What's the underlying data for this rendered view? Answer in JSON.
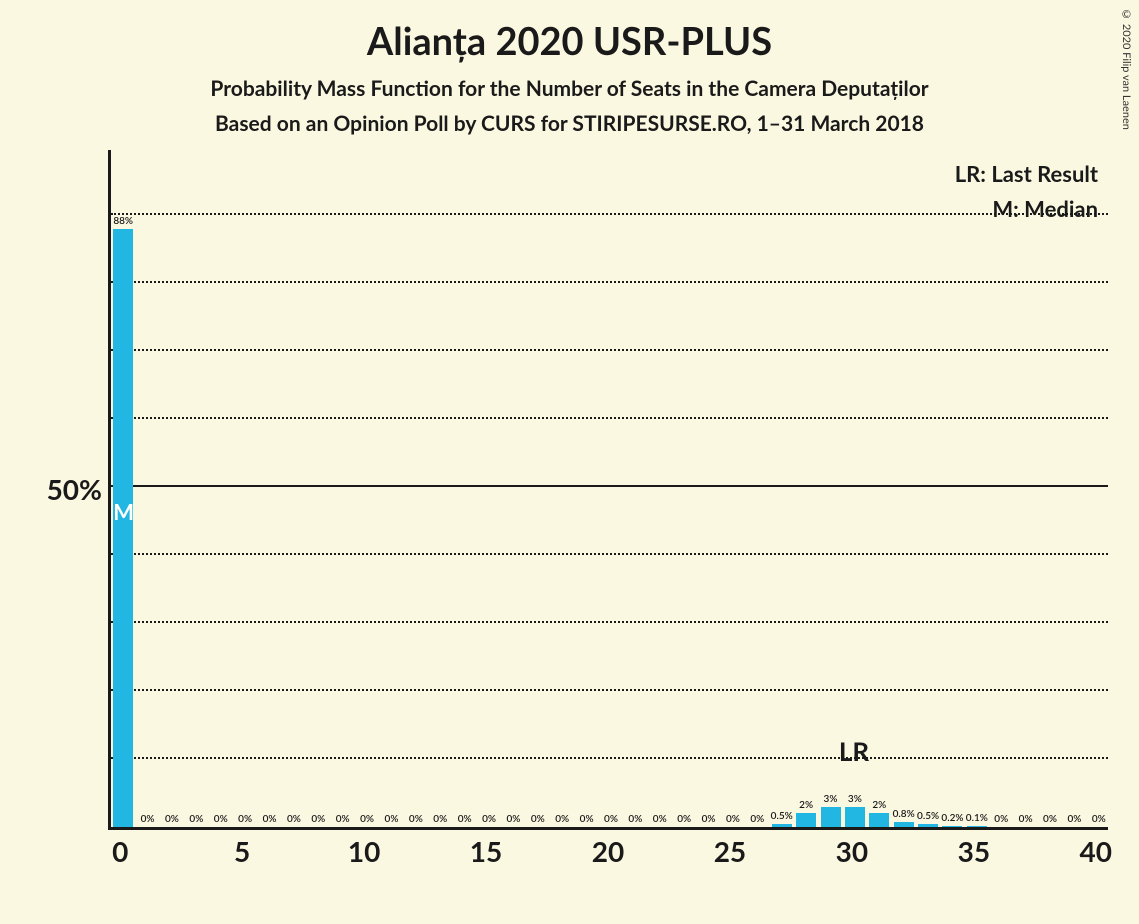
{
  "copyright": "© 2020 Filip van Laenen",
  "title": "Alianța 2020 USR-PLUS",
  "subtitle1": "Probability Mass Function for the Number of Seats in the Camera Deputaților",
  "subtitle2": "Based on an Opinion Poll by CURS for STIRIPESURSE.RO, 1–31 March 2018",
  "legend_lr": "LR: Last Result",
  "legend_m": "M: Median",
  "y_axis_label": "50%",
  "colors": {
    "background": "#fbf8e1",
    "bar": "#22b6e3",
    "axis": "#1a1a1a",
    "text": "#1a1a1a"
  },
  "chart": {
    "type": "bar",
    "x_min": 0,
    "x_max": 40,
    "y_max_pct": 100,
    "grid_y_values": [
      10,
      20,
      30,
      40,
      60,
      70,
      80,
      90
    ],
    "mid_line_y": 50,
    "x_ticks": [
      0,
      5,
      10,
      15,
      20,
      25,
      30,
      35,
      40
    ],
    "median_x": 0,
    "median_label": "M",
    "lr_x": 30,
    "lr_label": "LR",
    "bars": [
      {
        "x": 0,
        "pct": 88,
        "label": "88%"
      },
      {
        "x": 1,
        "pct": 0,
        "label": "0%"
      },
      {
        "x": 2,
        "pct": 0,
        "label": "0%"
      },
      {
        "x": 3,
        "pct": 0,
        "label": "0%"
      },
      {
        "x": 4,
        "pct": 0,
        "label": "0%"
      },
      {
        "x": 5,
        "pct": 0,
        "label": "0%"
      },
      {
        "x": 6,
        "pct": 0,
        "label": "0%"
      },
      {
        "x": 7,
        "pct": 0,
        "label": "0%"
      },
      {
        "x": 8,
        "pct": 0,
        "label": "0%"
      },
      {
        "x": 9,
        "pct": 0,
        "label": "0%"
      },
      {
        "x": 10,
        "pct": 0,
        "label": "0%"
      },
      {
        "x": 11,
        "pct": 0,
        "label": "0%"
      },
      {
        "x": 12,
        "pct": 0,
        "label": "0%"
      },
      {
        "x": 13,
        "pct": 0,
        "label": "0%"
      },
      {
        "x": 14,
        "pct": 0,
        "label": "0%"
      },
      {
        "x": 15,
        "pct": 0,
        "label": "0%"
      },
      {
        "x": 16,
        "pct": 0,
        "label": "0%"
      },
      {
        "x": 17,
        "pct": 0,
        "label": "0%"
      },
      {
        "x": 18,
        "pct": 0,
        "label": "0%"
      },
      {
        "x": 19,
        "pct": 0,
        "label": "0%"
      },
      {
        "x": 20,
        "pct": 0,
        "label": "0%"
      },
      {
        "x": 21,
        "pct": 0,
        "label": "0%"
      },
      {
        "x": 22,
        "pct": 0,
        "label": "0%"
      },
      {
        "x": 23,
        "pct": 0,
        "label": "0%"
      },
      {
        "x": 24,
        "pct": 0,
        "label": "0%"
      },
      {
        "x": 25,
        "pct": 0,
        "label": "0%"
      },
      {
        "x": 26,
        "pct": 0,
        "label": "0%"
      },
      {
        "x": 27,
        "pct": 0.5,
        "label": "0.5%"
      },
      {
        "x": 28,
        "pct": 2,
        "label": "2%"
      },
      {
        "x": 29,
        "pct": 3,
        "label": "3%"
      },
      {
        "x": 30,
        "pct": 3,
        "label": "3%"
      },
      {
        "x": 31,
        "pct": 2,
        "label": "2%"
      },
      {
        "x": 32,
        "pct": 0.8,
        "label": "0.8%"
      },
      {
        "x": 33,
        "pct": 0.5,
        "label": "0.5%"
      },
      {
        "x": 34,
        "pct": 0.2,
        "label": "0.2%"
      },
      {
        "x": 35,
        "pct": 0.1,
        "label": "0.1%"
      },
      {
        "x": 36,
        "pct": 0,
        "label": "0%"
      },
      {
        "x": 37,
        "pct": 0,
        "label": "0%"
      },
      {
        "x": 38,
        "pct": 0,
        "label": "0%"
      },
      {
        "x": 39,
        "pct": 0,
        "label": "0%"
      },
      {
        "x": 40,
        "pct": 0,
        "label": "0%"
      }
    ]
  }
}
